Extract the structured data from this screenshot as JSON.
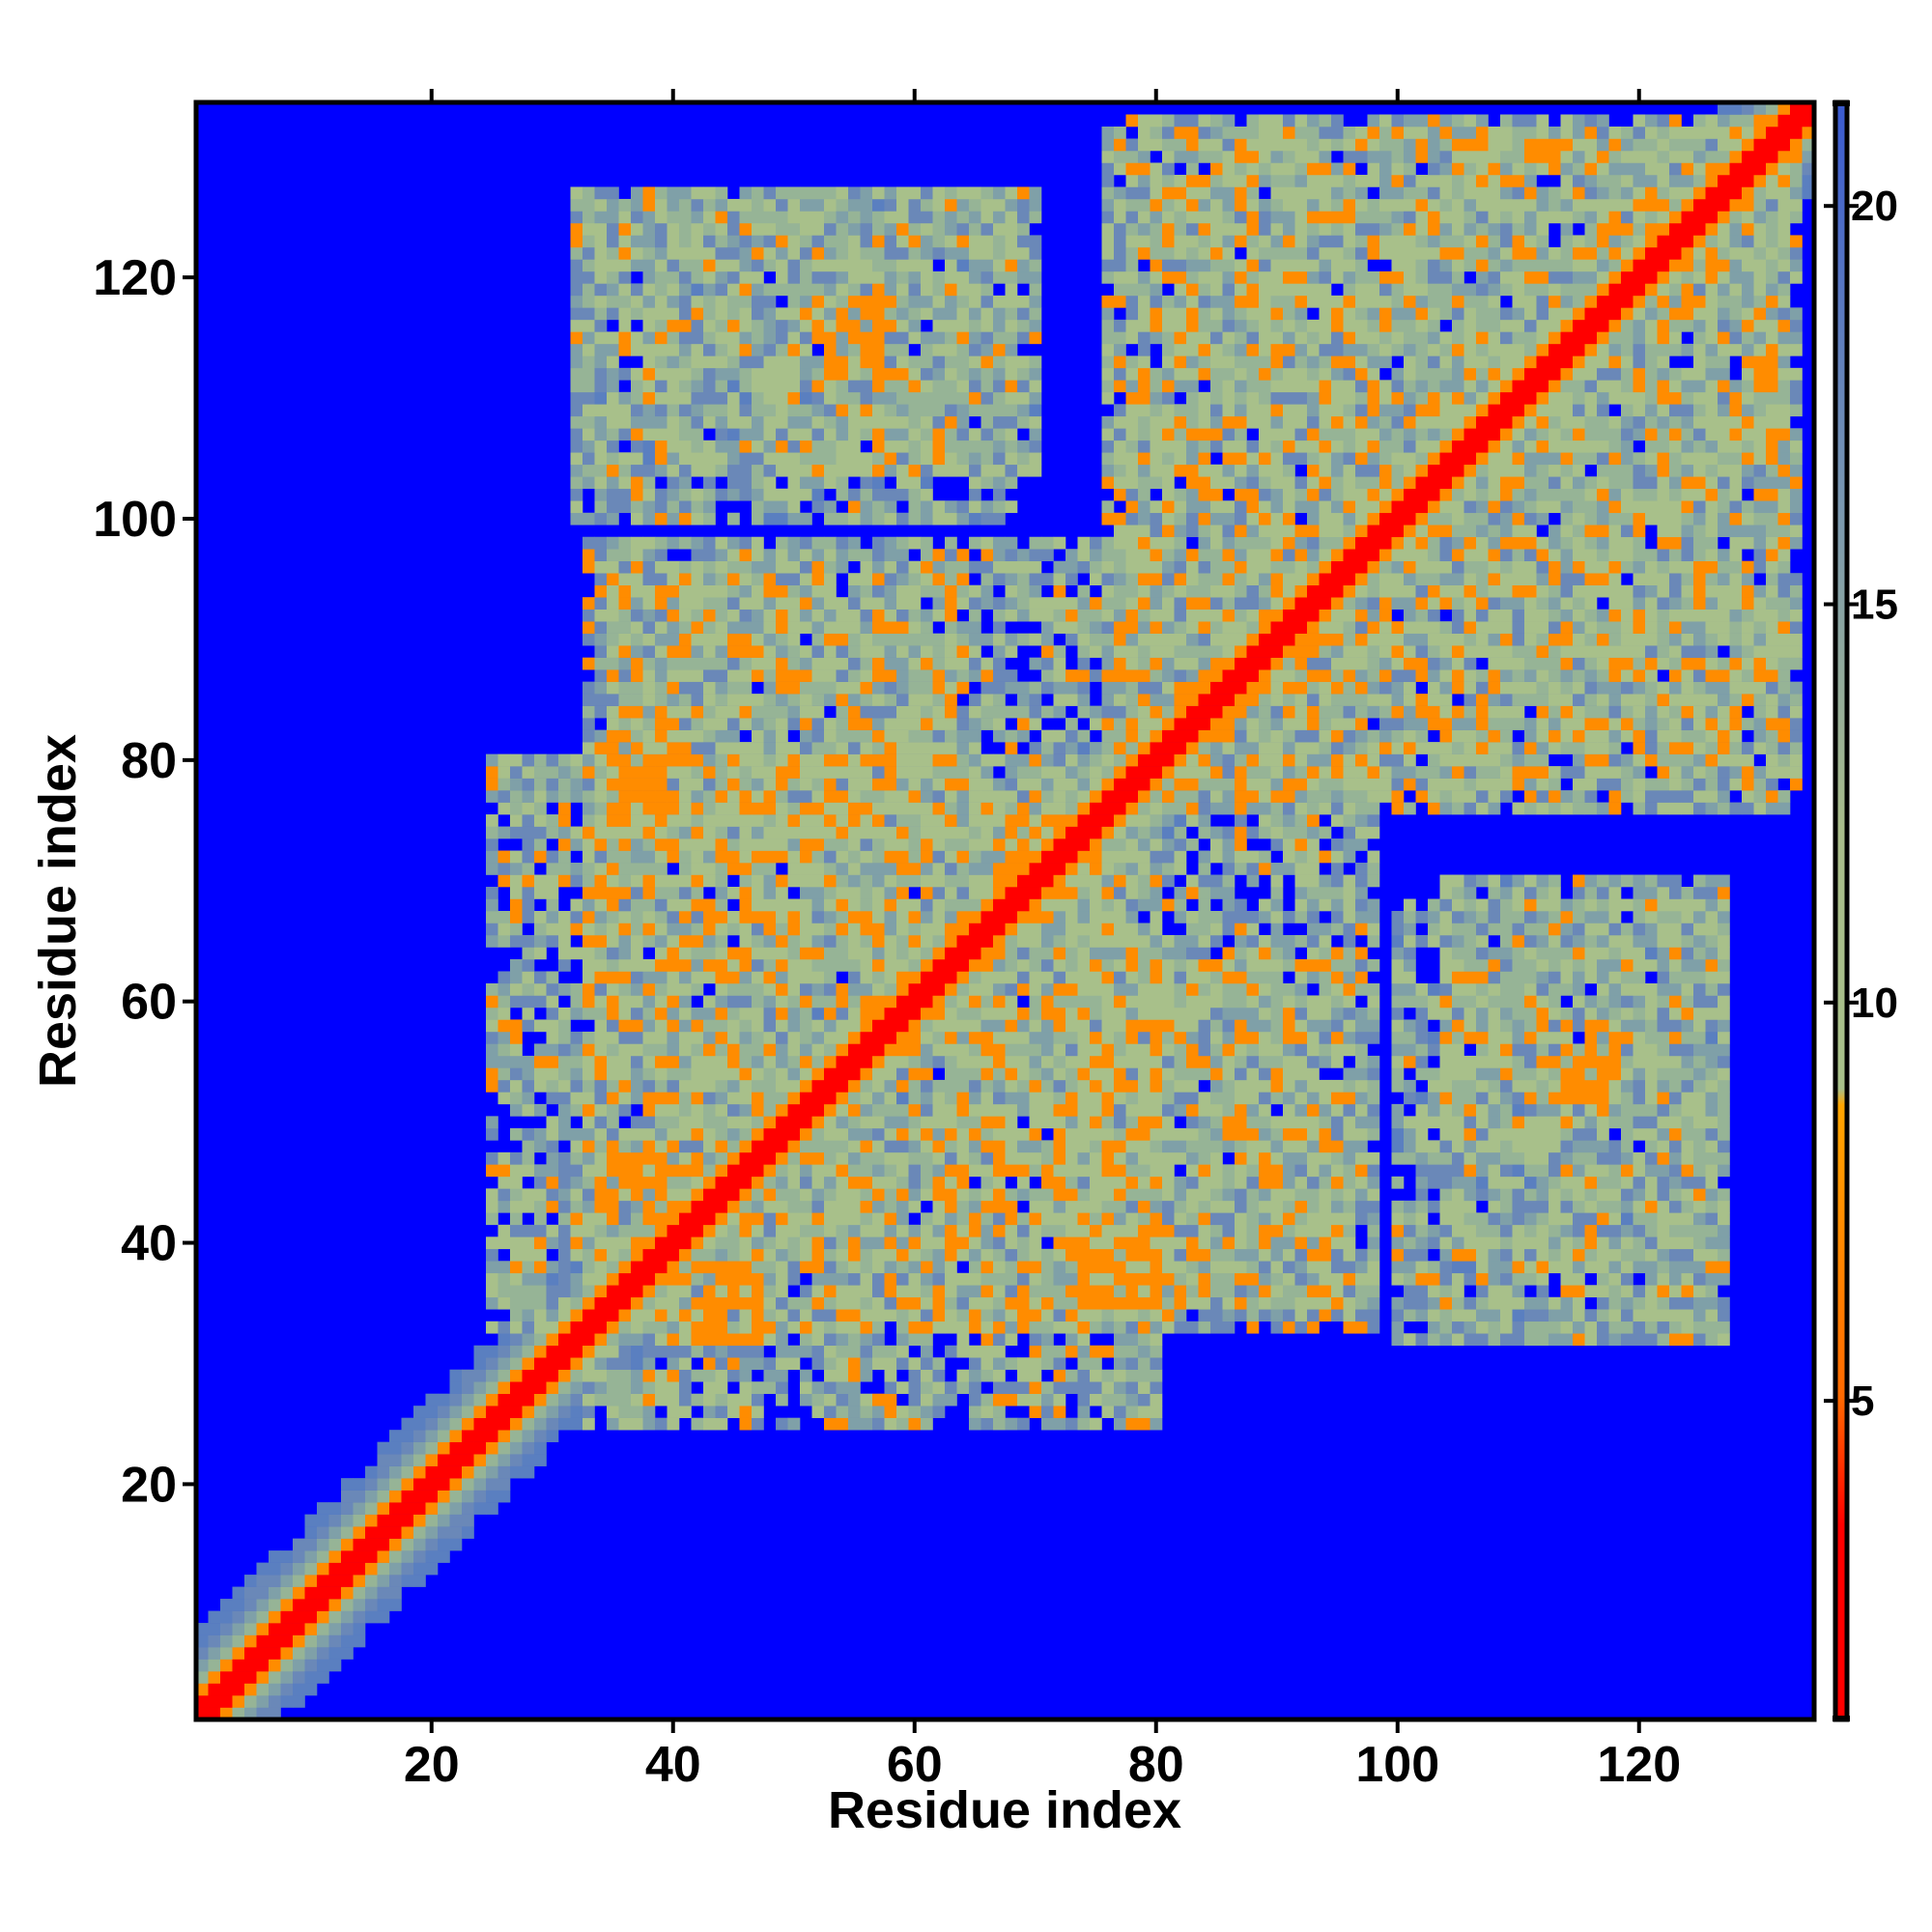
{
  "chart_data": {
    "type": "heatmap",
    "title": "",
    "xlabel": "Residue index",
    "ylabel": "Residue index",
    "n_residues": 134,
    "xlim": [
      1,
      134
    ],
    "ylim": [
      1,
      134
    ],
    "x_ticks": [
      20,
      40,
      60,
      80,
      100,
      120
    ],
    "y_ticks": [
      20,
      40,
      60,
      80,
      100,
      120
    ],
    "x_tick_labels": [
      "20",
      "40",
      "60",
      "80",
      "100",
      "120"
    ],
    "y_tick_labels": [
      "20",
      "40",
      "60",
      "80",
      "100",
      "120"
    ],
    "colorbar": {
      "range": [
        1,
        21.3
      ],
      "ticks": [
        5,
        10,
        15,
        20
      ],
      "tick_labels": [
        "5",
        "10",
        "15",
        "20"
      ],
      "colors": [
        "#ff0000",
        "#ff8c00",
        "#a8c08a",
        "#5a7fc0",
        "#0000ff"
      ]
    },
    "grid": false,
    "legend": "none",
    "colors": {
      "background": "#0000ff",
      "near": "#ff0000",
      "mid": "#ff8c00",
      "far": "#a8c08a",
      "farther": "#5a7fc0"
    },
    "contact_blocks": [
      {
        "x": [
          33,
          80
        ],
        "y": [
          25,
          98
        ],
        "value": 12.5
      },
      {
        "x": [
          78,
          133
        ],
        "y": [
          76,
          132
        ],
        "value": 12.5
      },
      {
        "x": [
          104,
          127
        ],
        "y": [
          33,
          70
        ],
        "value": 13.5
      },
      {
        "x": [
          32,
          68
        ],
        "y": [
          100,
          127
        ],
        "value": 13.5
      },
      {
        "x": [
          72,
          96
        ],
        "y": [
          35,
          63
        ],
        "value": 12.5
      }
    ],
    "hotspots": [
      {
        "x": 37,
        "y": 45,
        "value": 6.5
      },
      {
        "x": 44,
        "y": 35,
        "value": 6.5
      },
      {
        "x": 38,
        "y": 79,
        "value": 6.5
      },
      {
        "x": 77,
        "y": 38,
        "value": 6.5
      },
      {
        "x": 55,
        "y": 115,
        "value": 6.5
      },
      {
        "x": 115,
        "y": 55,
        "value": 6.5
      },
      {
        "x": 91,
        "y": 89,
        "value": 6.5
      },
      {
        "x": 70,
        "y": 72,
        "value": 6.5
      }
    ]
  }
}
